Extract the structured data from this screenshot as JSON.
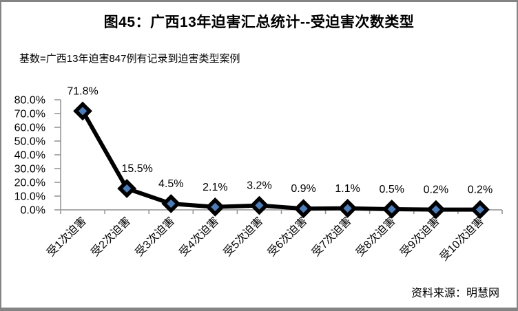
{
  "title": "图45：广西13年迫害汇总统计--受迫害次数类型",
  "subtitle": "基数=广西13年迫害847例有记录到迫害类型案例",
  "source_note": "资料来源：明慧网",
  "chart_data": {
    "type": "line",
    "title": "图45：广西13年迫害汇总统计--受迫害次数类型",
    "subtitle": "基数=广西13年迫害847例有记录到迫害类型案例",
    "source": "资料来源：明慧网",
    "categories": [
      "受1次迫害",
      "受2次迫害",
      "受3次迫害",
      "受4次迫害",
      "受5次迫害",
      "受6次迫害",
      "受7次迫害",
      "受8次迫害",
      "受9次迫害",
      "受10次迫害"
    ],
    "values": [
      71.8,
      15.5,
      4.5,
      2.1,
      3.2,
      0.9,
      1.1,
      0.5,
      0.2,
      0.2
    ],
    "data_labels": [
      "71.8%",
      "15.5%",
      "4.5%",
      "2.1%",
      "3.2%",
      "0.9%",
      "1.1%",
      "0.5%",
      "0.2%",
      "0.2%"
    ],
    "y_tick_labels": [
      "0.0%",
      "10.0%",
      "20.0%",
      "30.0%",
      "40.0%",
      "50.0%",
      "60.0%",
      "70.0%",
      "80.0%"
    ],
    "ylim": [
      0,
      80
    ],
    "y_tick_step": 10,
    "xlabel": "",
    "ylabel": "",
    "grid": false,
    "legend": "none",
    "x_label_rotation": -45,
    "label_dx": [
      0,
      15,
      0,
      0,
      0,
      0,
      0,
      0,
      0,
      0
    ],
    "marker_shape": "diamond",
    "colors": {
      "line": "#000000",
      "marker_fill": "#4A7EBB",
      "marker_stroke": "#000000",
      "axis": "#919191",
      "text": "#000000",
      "frame_border": "#848484"
    }
  }
}
